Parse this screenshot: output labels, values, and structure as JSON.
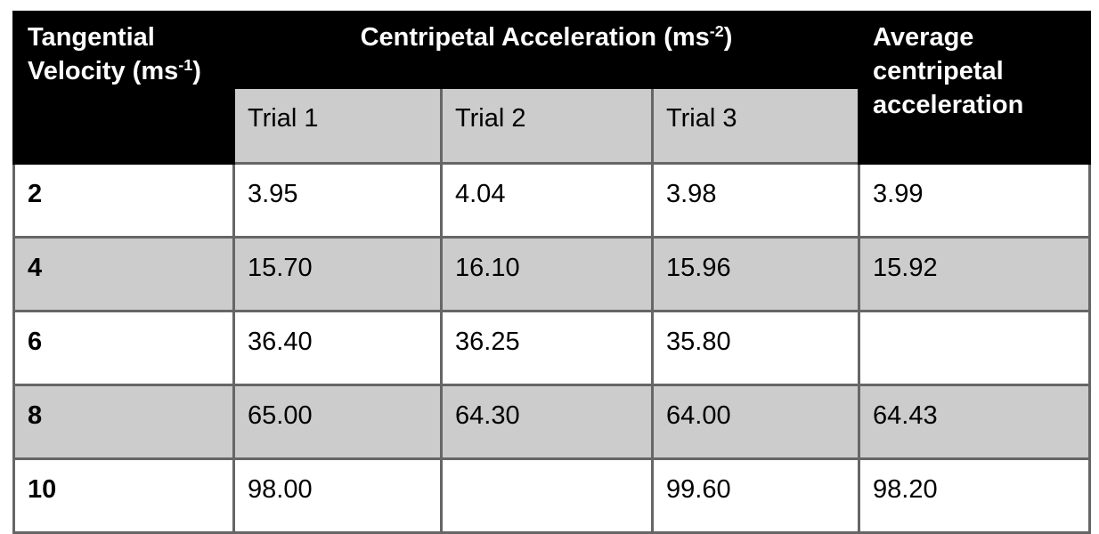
{
  "table": {
    "header": {
      "velocity": {
        "base": "Tangential Velocity (ms",
        "sup": "-1",
        "after": ")"
      },
      "centripetal": {
        "base": "Centripetal Acceleration (ms",
        "sup": "-2",
        "after": ")"
      },
      "average": "Average centripetal acceleration",
      "trials": [
        "Trial 1",
        "Trial 2",
        "Trial 3"
      ]
    },
    "rows": [
      {
        "velocity": "2",
        "trial1": "3.95",
        "trial2": "4.04",
        "trial3": "3.98",
        "average": "3.99"
      },
      {
        "velocity": "4",
        "trial1": "15.70",
        "trial2": "16.10",
        "trial3": "15.96",
        "average": "15.92"
      },
      {
        "velocity": "6",
        "trial1": "36.40",
        "trial2": "36.25",
        "trial3": "35.80",
        "average": ""
      },
      {
        "velocity": "8",
        "trial1": "65.00",
        "trial2": "64.30",
        "trial3": "64.00",
        "average": "64.43"
      },
      {
        "velocity": "10",
        "trial1": "98.00",
        "trial2": "",
        "trial3": "99.60",
        "average": "98.20"
      }
    ]
  },
  "colors": {
    "header_bg": "#000000",
    "header_text": "#ffffff",
    "stripe_gray": "#cccccc",
    "border": "#666666",
    "page_bg": "#ffffff"
  }
}
